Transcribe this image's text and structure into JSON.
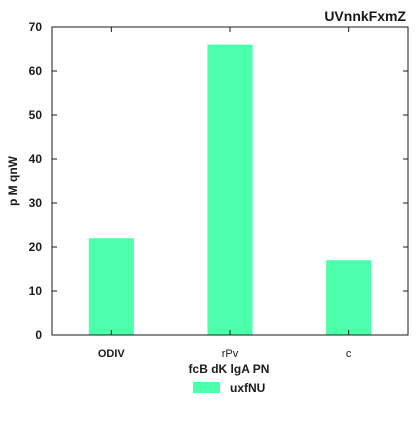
{
  "chart_data": {
    "type": "bar",
    "title": "UVnnkFxmZ",
    "xlabel": "fcB dK  lgA PN",
    "ylabel": "p  M qnW",
    "categories": [
      "ODIV",
      "rPv",
      "c"
    ],
    "series": [
      {
        "name": "uxfNU",
        "values": [
          22,
          66,
          17
        ],
        "color": "#4cffaa"
      }
    ],
    "ylim": [
      0,
      70
    ],
    "yticks": [
      0,
      10,
      20,
      30,
      40,
      50,
      60,
      70
    ],
    "grid": false,
    "legend_position": "bottom-center"
  }
}
